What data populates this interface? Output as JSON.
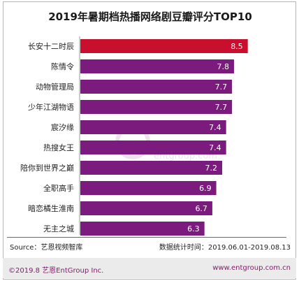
{
  "header": {
    "title": "2019年暑期档热播网络剧豆瓣评分TOP10"
  },
  "chart_data": {
    "type": "bar",
    "orientation": "horizontal",
    "categories": [
      "长安十二时辰",
      "陈情令",
      "动物管理局",
      "少年江湖物语",
      "宸汐缘",
      "热搜女王",
      "陪你到世界之巅",
      "全职高手",
      "暗恋橘生淮南",
      "无主之城"
    ],
    "values": [
      8.5,
      7.8,
      7.7,
      7.7,
      7.4,
      7.4,
      7.2,
      6.9,
      6.7,
      6.3
    ],
    "value_labels": [
      "8.5",
      "7.8",
      "7.7",
      "7.7",
      "7.4",
      "7.4",
      "7.2",
      "6.9",
      "6.7",
      "6.3"
    ],
    "highlight_color": "#c8102e",
    "bar_color": "#7b1b7e",
    "value_label_color": "#ffffff",
    "grid": false,
    "legend": "none"
  },
  "footer": {
    "source": "Source：艺恩视频智库",
    "period": "数据统计时间：2019.06.01-2019.08.13"
  },
  "band": {
    "copyright": "©2019.8 艺恩EntGroup Inc.",
    "website": "www.entgroup.com.cn"
  },
  "watermark": {
    "text": "entgroup.com"
  }
}
